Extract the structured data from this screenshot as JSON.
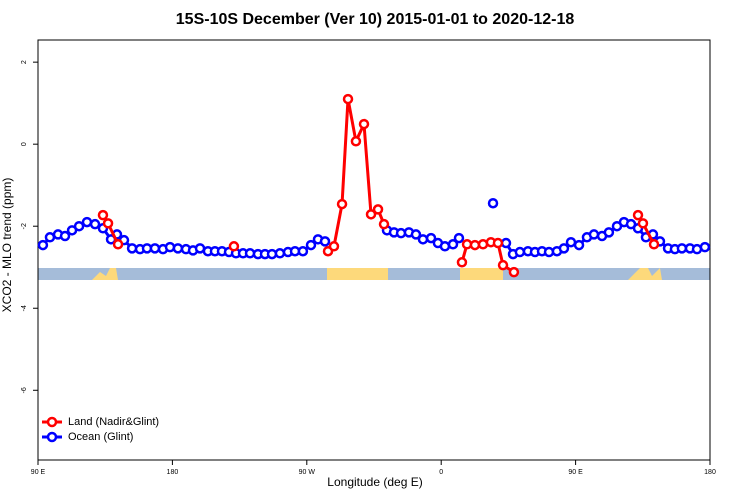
{
  "chart_data": {
    "type": "line",
    "title": "15S-10S December (Ver 10)   2015-01-01 to 2020-12-18",
    "xlabel": "Longitude (deg E)",
    "ylabel": "XCO2 - MLO trend (ppm)",
    "xlim": [
      90,
      540
    ],
    "ylim": [
      -7.7,
      2.54
    ],
    "xticks": [
      {
        "value": 90,
        "label": "90 E"
      },
      180,
      {
        "value": 270,
        "label": "90 W"
      },
      {
        "value": 360,
        "label": "0"
      },
      {
        "value": 450,
        "label": "90 E"
      },
      {
        "value": 540,
        "label": "180"
      }
    ],
    "yticks": [
      -6,
      -4,
      -2,
      0,
      2
    ],
    "legend": "bottom-left",
    "series": [
      {
        "name": "Land (Nadir&Glint)",
        "color": "#ff0000",
        "x": [
          133.5,
          136.9,
          143.6,
          150,
          221.2,
          250,
          284.2,
          288.2,
          293.6,
          297.6,
          302.9,
          308.3,
          313.0,
          317.7,
          321.7,
          340,
          373.9,
          377.3,
          382.6,
          388.0,
          393.3,
          398.0,
          401.4,
          408.7,
          450,
          491.8,
          495.1,
          502.5
        ],
        "values": [
          -1.73,
          -1.93,
          -2.44,
          null,
          -2.49,
          null,
          -2.61,
          -2.49,
          -1.46,
          1.1,
          0.07,
          0.49,
          -1.71,
          -1.59,
          -1.95,
          null,
          -2.88,
          -2.44,
          -2.46,
          -2.44,
          -2.39,
          -2.41,
          -2.95,
          -3.12,
          null,
          -1.73,
          -1.93,
          -2.44
        ]
      },
      {
        "name": "Ocean (Glint)",
        "color": "#0000ff",
        "x": [
          93.3,
          98.0,
          103.4,
          108.1,
          112.8,
          117.5,
          122.8,
          128.2,
          133.5,
          138.9,
          142.9,
          147.6,
          153.0,
          158.3,
          163.0,
          168.3,
          173.7,
          178.4,
          183.7,
          189.1,
          193.8,
          198.5,
          203.8,
          208.5,
          213.2,
          217.9,
          222.6,
          227.3,
          232.0,
          237.3,
          242.0,
          246.7,
          252.0,
          257.4,
          262.1,
          267.4,
          272.8,
          277.5,
          282.2,
          300,
          323.7,
          328.4,
          333.1,
          338.4,
          343.1,
          347.8,
          353.2,
          357.8,
          362.5,
          367.9,
          371.9,
          380,
          394.7,
          398,
          403.4,
          408.1,
          412.7,
          418.1,
          422.8,
          427.5,
          432.2,
          437.5,
          442.2,
          446.9,
          452.3,
          457.6,
          462.3,
          467.7,
          472.3,
          477.7,
          482.4,
          487.1,
          491.8,
          497.1,
          501.8,
          506.5,
          511.9,
          516.5,
          521.2,
          526.6,
          531.3,
          536.6
        ],
        "values": [
          -2.46,
          -2.27,
          -2.2,
          -2.24,
          -2.1,
          -2.0,
          -1.9,
          -1.95,
          -2.05,
          -2.32,
          -2.2,
          -2.34,
          -2.54,
          -2.56,
          -2.54,
          -2.54,
          -2.56,
          -2.51,
          -2.54,
          -2.56,
          -2.59,
          -2.54,
          -2.61,
          -2.61,
          -2.61,
          -2.63,
          -2.66,
          -2.66,
          -2.66,
          -2.68,
          -2.68,
          -2.68,
          -2.66,
          -2.63,
          -2.61,
          -2.61,
          -2.46,
          -2.32,
          -2.37,
          null,
          -2.1,
          -2.15,
          -2.17,
          -2.15,
          -2.2,
          -2.32,
          -2.29,
          -2.41,
          -2.49,
          -2.44,
          -2.29,
          null,
          -1.44,
          null,
          -2.41,
          -2.68,
          -2.63,
          -2.61,
          -2.63,
          -2.61,
          -2.63,
          -2.61,
          -2.54,
          -2.39,
          -2.46,
          -2.27,
          -2.2,
          -2.24,
          -2.15,
          -2.0,
          -1.9,
          -1.95,
          -2.05,
          -2.27,
          -2.2,
          -2.37,
          -2.54,
          -2.56,
          -2.54,
          -2.54,
          -2.56,
          -2.51
        ]
      }
    ]
  }
}
